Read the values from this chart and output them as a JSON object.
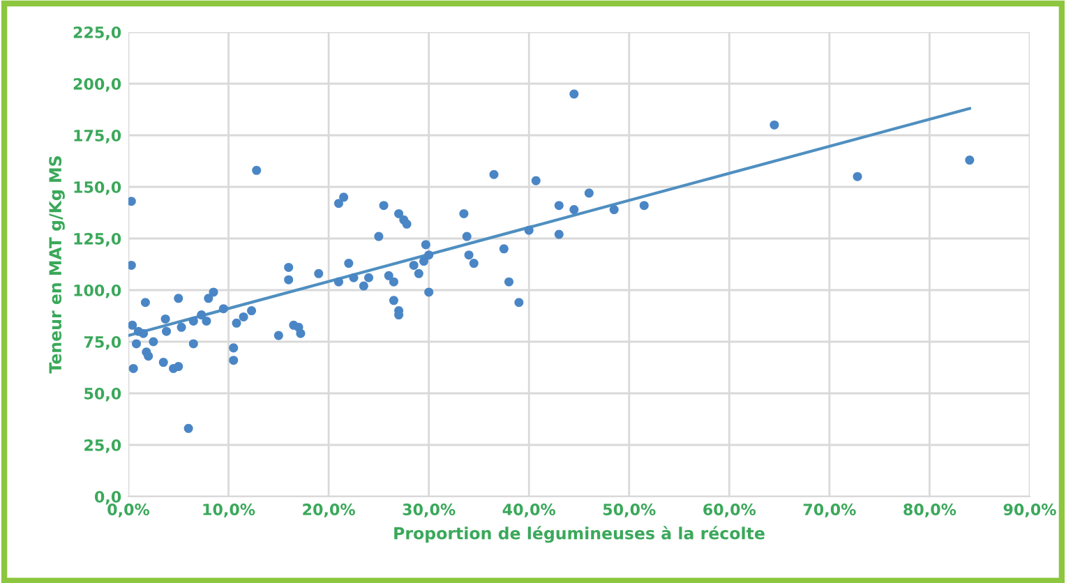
{
  "chart_data": {
    "type": "scatter",
    "xlabel": "Proportion de légumineuses à la récolte",
    "ylabel": "Teneur en MAT g/Kg MS",
    "xlim": [
      0,
      90
    ],
    "ylim": [
      0,
      225
    ],
    "xticks": [
      {
        "value": 0,
        "label": "0,0%"
      },
      {
        "value": 10,
        "label": "10,0%"
      },
      {
        "value": 20,
        "label": "20,0%"
      },
      {
        "value": 30,
        "label": "30,0%"
      },
      {
        "value": 40,
        "label": "40,0%"
      },
      {
        "value": 50,
        "label": "50,0%"
      },
      {
        "value": 60,
        "label": "60,0%"
      },
      {
        "value": 70,
        "label": "70,0%"
      },
      {
        "value": 80,
        "label": "80,0%"
      },
      {
        "value": 90,
        "label": "90,0%"
      }
    ],
    "yticks": [
      {
        "value": 0,
        "label": "0,0"
      },
      {
        "value": 25,
        "label": "25,0"
      },
      {
        "value": 50,
        "label": "50,0"
      },
      {
        "value": 75,
        "label": "75,0"
      },
      {
        "value": 100,
        "label": "100,0"
      },
      {
        "value": 125,
        "label": "125,0"
      },
      {
        "value": 150,
        "label": "150,0"
      },
      {
        "value": 175,
        "label": "175,0"
      },
      {
        "value": 200,
        "label": "200,0"
      },
      {
        "value": 225,
        "label": "225,0"
      }
    ],
    "grid": true,
    "legend": false,
    "series": [
      {
        "marker": "circle",
        "color": "#4a86c5",
        "x": [
          0.3,
          0.3,
          0.4,
          0.5,
          1,
          0.8,
          1.5,
          1.7,
          1.8,
          2,
          2.5,
          3.5,
          3.7,
          3.8,
          4.5,
          5,
          5,
          5.3,
          6,
          6.5,
          6.5,
          7.3,
          7.8,
          8,
          8.5,
          9.5,
          10.5,
          10.5,
          10.8,
          11.5,
          12.3,
          12.8,
          15,
          16,
          16,
          16.5,
          17,
          17.2,
          19,
          21,
          21.5,
          21,
          22,
          22.5,
          23.5,
          24,
          25,
          25.5,
          26,
          26.5,
          26.5,
          27,
          27,
          27,
          27.5,
          27.8,
          28.5,
          29,
          29.5,
          30,
          29.7,
          30,
          33.5,
          33.8,
          34,
          34.5,
          36.5,
          37.5,
          38,
          39,
          40,
          40.7,
          43,
          43,
          44.5,
          44.5,
          46,
          48.5,
          51.5,
          64.5,
          72.8,
          84
        ],
        "values": [
          143,
          112,
          83,
          62,
          80,
          74,
          79,
          94,
          70,
          68,
          75,
          65,
          86,
          80,
          62,
          63,
          96,
          82,
          33,
          85,
          74,
          88,
          85,
          96,
          99,
          91,
          72,
          66,
          84,
          87,
          90,
          158,
          78,
          111,
          105,
          83,
          82,
          79,
          108,
          142,
          145,
          104,
          113,
          106,
          102,
          106,
          126,
          141,
          107,
          104,
          95,
          90,
          88,
          137,
          134,
          132,
          112,
          108,
          114,
          117,
          122,
          99,
          137,
          126,
          117,
          113,
          156,
          120,
          104,
          94,
          129,
          153,
          141,
          127,
          139,
          195,
          147,
          139,
          141,
          180,
          155,
          163
        ]
      },
      {
        "type": "line",
        "color": "#4f8fc0",
        "x": [
          0,
          84
        ],
        "values": [
          78,
          188
        ]
      }
    ]
  }
}
